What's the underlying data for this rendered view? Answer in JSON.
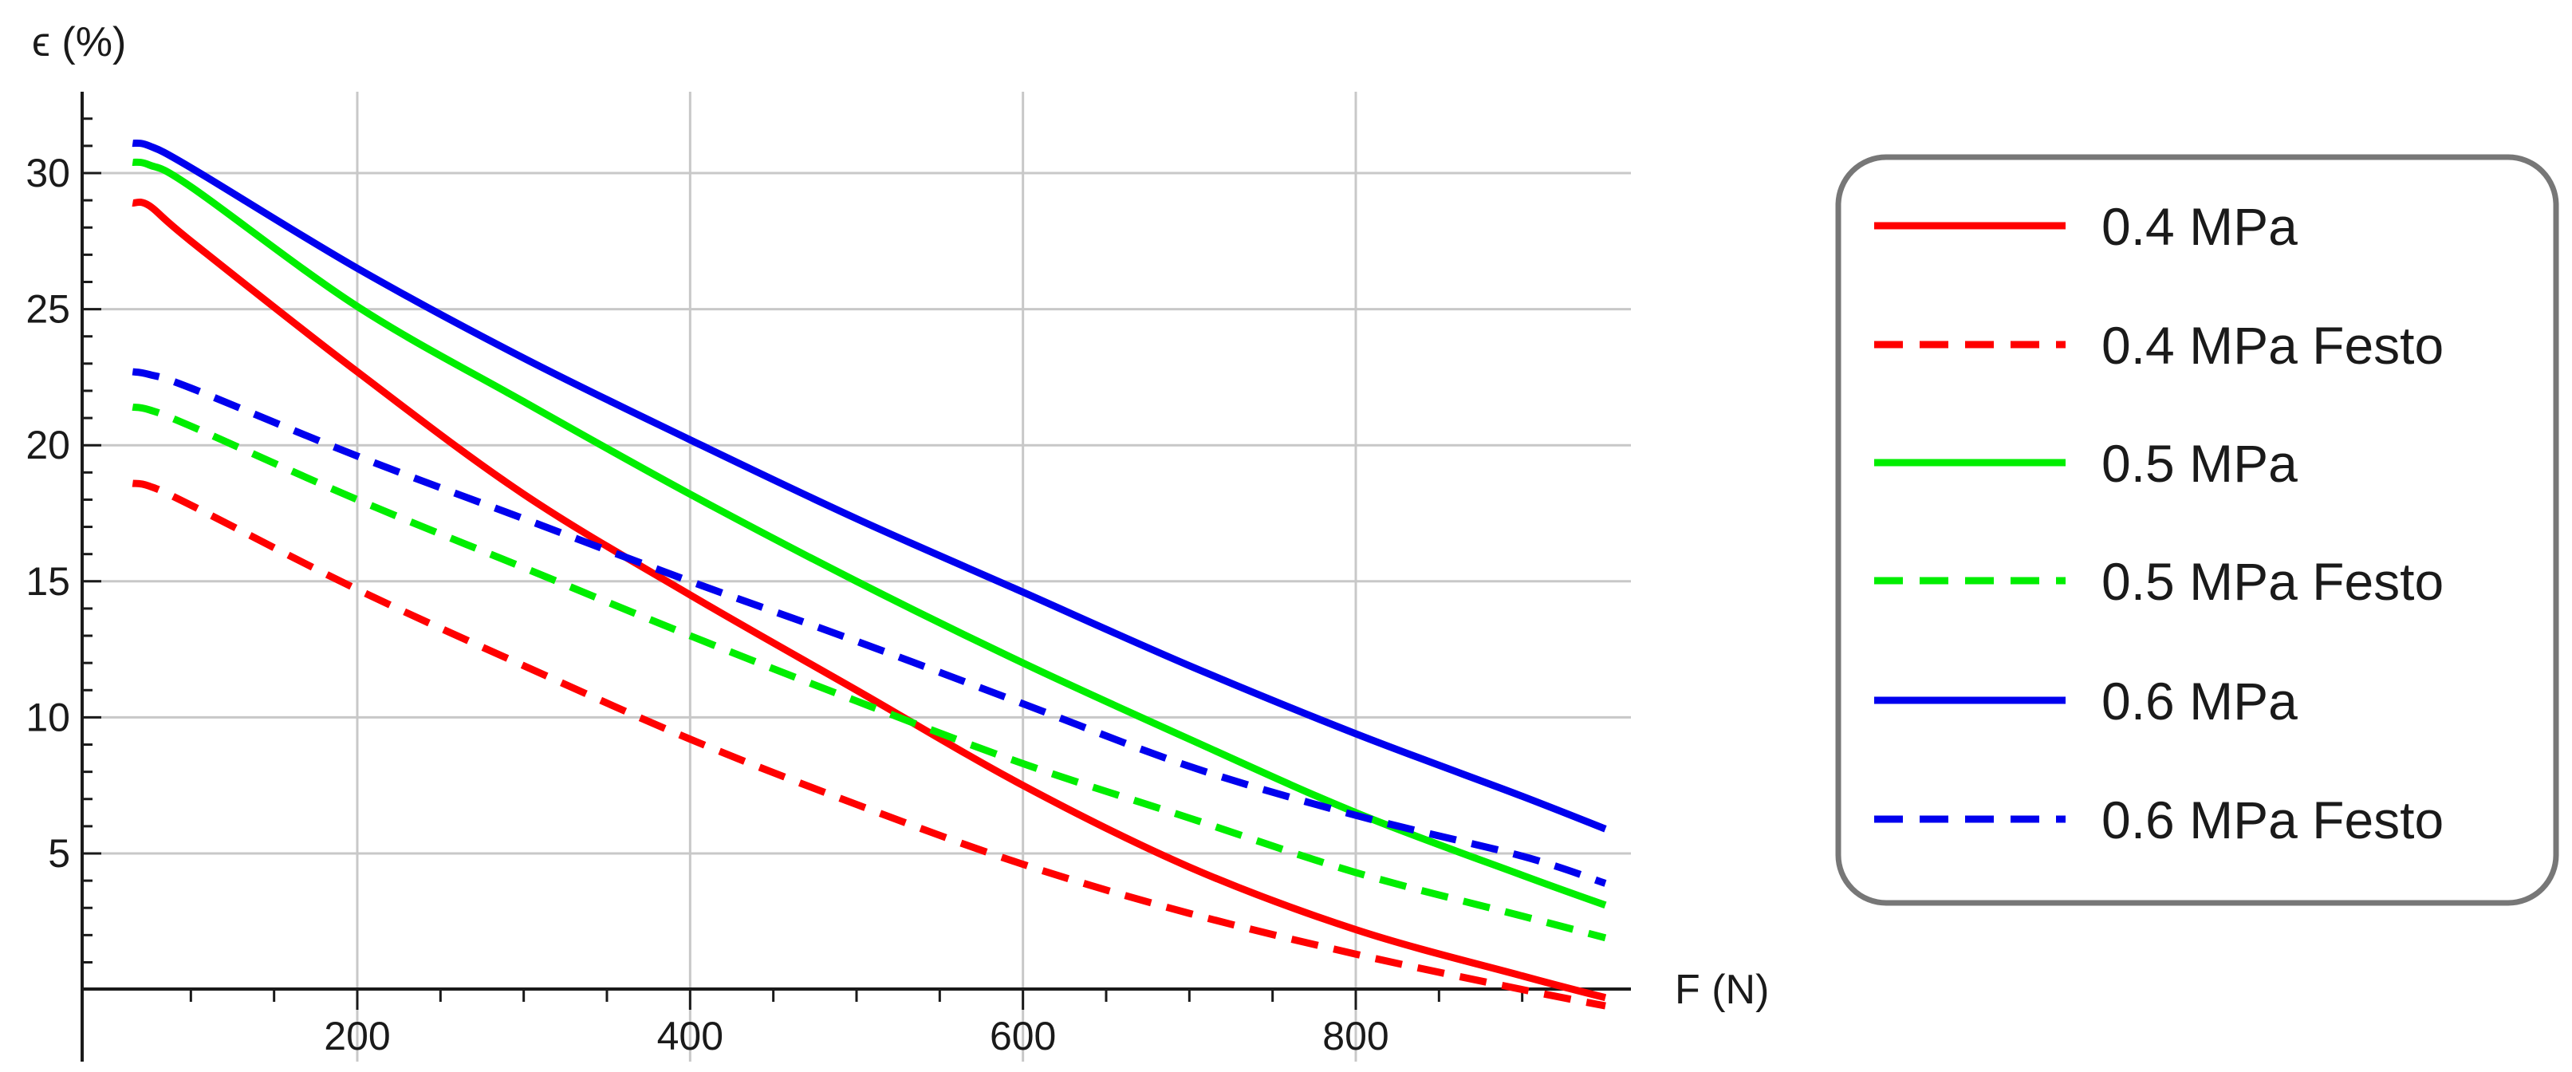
{
  "chart_data": {
    "type": "line",
    "xlabel": "F (N)",
    "ylabel": "ϵ (%)",
    "xlim": [
      50,
      950
    ],
    "ylim": [
      -2,
      33
    ],
    "x_ticks": [
      200,
      400,
      600,
      800
    ],
    "x_tick_labels": [
      "200",
      "400",
      "600",
      "800"
    ],
    "y_ticks": [
      5,
      10,
      15,
      20,
      25,
      30
    ],
    "y_tick_labels": [
      "5",
      "10",
      "15",
      "20",
      "25",
      "30"
    ],
    "grid": true,
    "legend_position": "right",
    "series": [
      {
        "name": "0.4 MPa",
        "color": "#ff0000",
        "dash": "solid",
        "x": [
          65,
          75,
          100,
          200,
          300,
          400,
          500,
          600,
          700,
          800,
          900,
          950
        ],
        "y": [
          28.9,
          28.8,
          27.5,
          22.7,
          18.2,
          14.5,
          11.0,
          7.5,
          4.5,
          2.2,
          0.5,
          -0.3
        ]
      },
      {
        "name": "0.4 MPa Festo",
        "color": "#ff0000",
        "dash": "dashed",
        "x": [
          65,
          75,
          100,
          200,
          300,
          400,
          500,
          600,
          700,
          800,
          900,
          950
        ],
        "y": [
          18.6,
          18.5,
          17.8,
          14.7,
          11.9,
          9.2,
          6.8,
          4.6,
          2.8,
          1.3,
          0.0,
          -0.6
        ]
      },
      {
        "name": "0.5 MPa",
        "color": "#00ee00",
        "dash": "solid",
        "x": [
          65,
          75,
          100,
          200,
          300,
          400,
          500,
          600,
          700,
          800,
          900,
          950
        ],
        "y": [
          30.4,
          30.3,
          29.5,
          25.1,
          21.6,
          18.2,
          15.0,
          12.0,
          9.2,
          6.5,
          4.2,
          3.1
        ]
      },
      {
        "name": "0.5 MPa Festo",
        "color": "#00ee00",
        "dash": "dashed",
        "x": [
          65,
          75,
          100,
          200,
          300,
          400,
          500,
          600,
          700,
          800,
          900,
          950
        ],
        "y": [
          21.4,
          21.3,
          20.7,
          18.0,
          15.5,
          13.0,
          10.6,
          8.3,
          6.3,
          4.3,
          2.7,
          1.9
        ]
      },
      {
        "name": "0.6 MPa",
        "color": "#0000ee",
        "dash": "solid",
        "x": [
          65,
          75,
          100,
          200,
          300,
          400,
          500,
          600,
          700,
          800,
          900,
          950
        ],
        "y": [
          31.1,
          31.0,
          30.2,
          26.5,
          23.2,
          20.2,
          17.3,
          14.6,
          11.9,
          9.4,
          7.1,
          5.9
        ]
      },
      {
        "name": "0.6 MPa Festo",
        "color": "#0000ee",
        "dash": "dashed",
        "x": [
          65,
          75,
          100,
          200,
          300,
          400,
          500,
          600,
          700,
          800,
          900,
          950
        ],
        "y": [
          22.7,
          22.6,
          22.1,
          19.6,
          17.3,
          15.0,
          12.8,
          10.5,
          8.2,
          6.4,
          4.9,
          3.9
        ]
      }
    ]
  }
}
